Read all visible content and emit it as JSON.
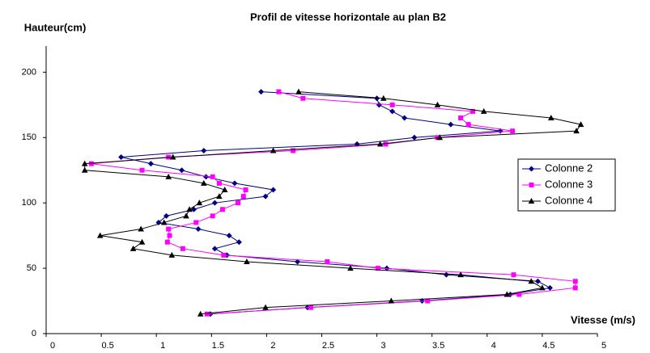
{
  "chart_data": {
    "type": "line",
    "title": "Profil de vitesse horizontale au plan B2",
    "y_label": "Hauteur(cm)",
    "x_label": "Vitesse (m/s)",
    "y": [
      15,
      20,
      25,
      30,
      35,
      40,
      45,
      50,
      55,
      60,
      65,
      70,
      75,
      80,
      85,
      90,
      95,
      100,
      105,
      110,
      115,
      120,
      125,
      130,
      135,
      140,
      145,
      150,
      155,
      160,
      165,
      170,
      175,
      180,
      185
    ],
    "series": [
      {
        "name": "Colonne 2",
        "color": "#000080",
        "marker": "diamond",
        "values": [
          1.49,
          2.37,
          3.41,
          4.21,
          4.57,
          4.46,
          3.63,
          3.09,
          2.28,
          1.64,
          1.53,
          1.75,
          1.66,
          1.38,
          1.02,
          1.09,
          1.34,
          1.53,
          1.99,
          2.06,
          1.71,
          1.45,
          1.23,
          0.95,
          0.68,
          1.43,
          2.82,
          3.34,
          4.12,
          3.67,
          3.25,
          3.14,
          3.02,
          3.0,
          1.95
        ]
      },
      {
        "name": "Colonne 3",
        "color": "#ff00ff",
        "marker": "square",
        "values": [
          1.46,
          2.4,
          3.46,
          4.29,
          4.8,
          4.8,
          4.24,
          3.01,
          2.55,
          1.61,
          1.24,
          1.1,
          1.12,
          1.11,
          1.36,
          1.51,
          1.6,
          1.74,
          1.79,
          1.81,
          1.57,
          1.51,
          0.87,
          0.41,
          1.11,
          2.24,
          3.08,
          3.55,
          4.23,
          3.83,
          3.76,
          3.87,
          3.14,
          2.33,
          2.11
        ]
      },
      {
        "name": "Colonne 4",
        "color": "#000000",
        "marker": "triangle",
        "values": [
          1.4,
          1.99,
          3.13,
          4.18,
          4.5,
          4.4,
          3.76,
          2.76,
          1.82,
          1.14,
          0.79,
          0.87,
          0.49,
          0.86,
          1.07,
          1.27,
          1.3,
          1.39,
          1.57,
          1.62,
          1.43,
          1.11,
          0.35,
          0.35,
          1.15,
          2.06,
          3.03,
          3.57,
          4.81,
          4.85,
          4.58,
          3.97,
          3.55,
          3.06,
          2.29
        ]
      }
    ],
    "xlim": [
      0,
      5
    ],
    "xticks": [
      0,
      0.5,
      1,
      1.5,
      2,
      2.5,
      3,
      3.5,
      4,
      4.5,
      5
    ],
    "ylim": [
      0,
      220
    ],
    "yticks": [
      0,
      50,
      100,
      150,
      200
    ],
    "grid": false,
    "legend": "right"
  }
}
